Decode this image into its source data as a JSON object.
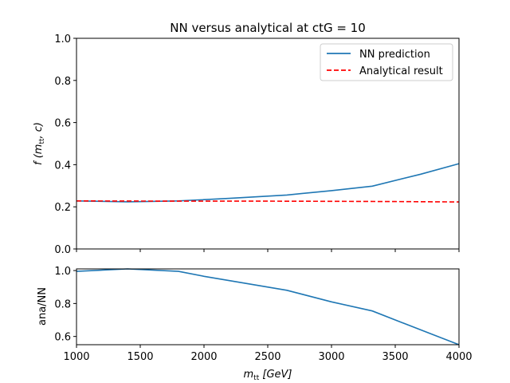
{
  "chart_data": [
    {
      "type": "line",
      "title": "NN versus analytical at ctG = 10",
      "xlabel": "",
      "ylabel": "f (m_tt, c)",
      "ylabel_parts": {
        "pre": "f (",
        "main": "m",
        "sub": "tt",
        "post": ", c)"
      },
      "xlim": [
        1000,
        4000
      ],
      "ylim": [
        0,
        1
      ],
      "yticks": [
        "0.0",
        "0.2",
        "0.4",
        "0.6",
        "0.8",
        "1.0"
      ],
      "ytick_values": [
        0,
        0.2,
        0.4,
        0.6,
        0.8,
        1.0
      ],
      "xtick_values": [
        1000,
        1500,
        2000,
        2500,
        3000,
        3500,
        4000
      ],
      "grid": false,
      "legend_position": "top-right",
      "series": [
        {
          "name": "NN prediction",
          "color": "#1f77b4",
          "style": "solid",
          "x": [
            1000,
            1400,
            1800,
            2200,
            2650,
            3000,
            3320,
            3700,
            4000
          ],
          "y": [
            0.228,
            0.224,
            0.228,
            0.24,
            0.256,
            0.277,
            0.298,
            0.355,
            0.405
          ]
        },
        {
          "name": "Analytical result",
          "color": "#ff0000",
          "style": "dashed",
          "x": [
            1000,
            1800,
            2500,
            3000,
            3500,
            4000
          ],
          "y": [
            0.228,
            0.227,
            0.227,
            0.226,
            0.225,
            0.223
          ]
        }
      ]
    },
    {
      "type": "line",
      "title": "",
      "xlabel": "m_tt [GeV]",
      "xlabel_parts": {
        "main": "m",
        "sub": "tt",
        "post": " [GeV]"
      },
      "ylabel": "ana/NN",
      "xlim": [
        1000,
        4000
      ],
      "ylim": [
        0.55,
        1.01
      ],
      "yticks": [
        "0.6",
        "0.8",
        "1.0"
      ],
      "ytick_values": [
        0.6,
        0.8,
        1.0
      ],
      "xticks": [
        "1000",
        "1500",
        "2000",
        "2500",
        "3000",
        "3500",
        "4000"
      ],
      "xtick_values": [
        1000,
        1500,
        2000,
        2500,
        3000,
        3500,
        4000
      ],
      "grid": false,
      "series": [
        {
          "color": "#1f77b4",
          "style": "solid",
          "x": [
            1000,
            1400,
            1800,
            2000,
            2650,
            3000,
            3320,
            3550,
            3800,
            4000
          ],
          "y": [
            0.995,
            1.01,
            0.995,
            0.965,
            0.88,
            0.81,
            0.755,
            0.685,
            0.61,
            0.55
          ]
        }
      ]
    }
  ]
}
